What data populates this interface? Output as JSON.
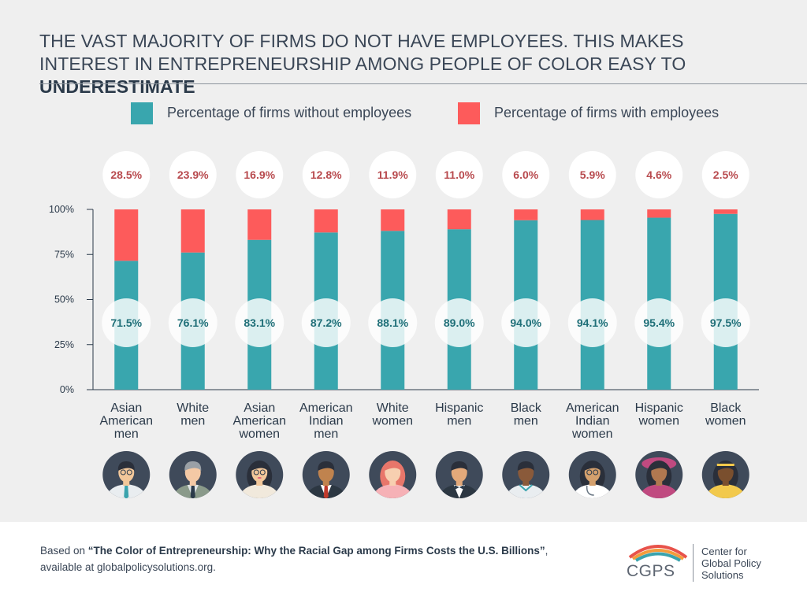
{
  "header": {
    "title_main": "THE VAST MAJORITY OF FIRMS DO NOT HAVE EMPLOYEES. THIS MAKES INTEREST IN ENTREPRENEURSHIP AMONG PEOPLE OF COLOR EASY TO ",
    "title_emphasis": "UNDERESTIMATE"
  },
  "colors": {
    "without": "#39a6ae",
    "with": "#fd5b5b",
    "with_text": "#b84a4e",
    "without_text": "#1f6f78",
    "axis": "#2b3a4a"
  },
  "chart_data": {
    "type": "bar",
    "stacked": true,
    "categories": [
      [
        "Asian",
        "American",
        "men"
      ],
      [
        "White",
        "men"
      ],
      [
        "Asian",
        "American",
        "women"
      ],
      [
        "American",
        "Indian",
        "men"
      ],
      [
        "White",
        "women"
      ],
      [
        "Hispanic",
        "men"
      ],
      [
        "Black",
        "men"
      ],
      [
        "American",
        "Indian",
        "women"
      ],
      [
        "Hispanic",
        "women"
      ],
      [
        "Black",
        "women"
      ]
    ],
    "series": [
      {
        "name": "Percentage of firms without employees",
        "color": "#39a6ae",
        "values": [
          71.5,
          76.1,
          83.1,
          87.2,
          88.1,
          89.0,
          94.0,
          94.1,
          95.4,
          97.5
        ],
        "labels": [
          "71.5%",
          "76.1%",
          "83.1%",
          "87.2%",
          "88.1%",
          "89.0%",
          "94.0%",
          "94.1%",
          "95.4%",
          "97.5%"
        ]
      },
      {
        "name": "Percentage of firms with employees",
        "color": "#fd5b5b",
        "values": [
          28.5,
          23.9,
          16.9,
          12.8,
          11.9,
          11.0,
          6.0,
          5.9,
          4.6,
          2.5
        ],
        "labels": [
          "28.5%",
          "23.9%",
          "16.9%",
          "12.8%",
          "11.9%",
          "11.0%",
          "6.0%",
          "5.9%",
          "4.6%",
          "2.5%"
        ]
      }
    ],
    "ylim": [
      0,
      100
    ],
    "yticks": [
      0,
      25,
      50,
      75,
      100
    ],
    "ytick_labels": [
      "0%",
      "25%",
      "50%",
      "75%",
      "100%"
    ],
    "legend_position": "top"
  },
  "avatars": [
    {
      "icon": "asian-man-avatar-icon",
      "skin": "#f2c79a",
      "hair": "#2a2f3a",
      "shirt": "#e9edf0",
      "tie": "#3aa3ad",
      "glasses": true
    },
    {
      "icon": "white-man-avatar-icon",
      "skin": "#f4c9a5",
      "hair": "#9aa0a6",
      "shirt": "#dfe4e6",
      "jacket": "#8a9a8a",
      "tie": "#2b3a4a"
    },
    {
      "icon": "asian-woman-avatar-icon",
      "skin": "#f2c79a",
      "hair": "#2a2f3a",
      "shirt": "#f1e9dc",
      "glasses": true,
      "lips": "#e0607a"
    },
    {
      "icon": "american-indian-man-avatar-icon",
      "skin": "#c0834e",
      "hair": "#2a2f3a",
      "shirt": "#ffffff",
      "jacket": "#2c3742",
      "tie": "#c0392b"
    },
    {
      "icon": "white-woman-avatar-icon",
      "skin": "#f7cfb0",
      "hair": "#e8766a",
      "shirt": "#f6b1b6"
    },
    {
      "icon": "hispanic-man-avatar-icon",
      "skin": "#e3a97a",
      "hair": "#2a2f3a",
      "shirt": "#ffffff",
      "jacket": "#2c3742",
      "bowtie": "#2b3a4a"
    },
    {
      "icon": "black-man-avatar-icon",
      "skin": "#8a5a3a",
      "hair": "#2a2f3a",
      "shirt": "#e9edf0",
      "collar": "#3aa3ad"
    },
    {
      "icon": "american-indian-woman-avatar-icon",
      "skin": "#d4a06d",
      "hair": "#2a2f3a",
      "shirt": "#ffffff",
      "glasses": true,
      "stethoscope": true
    },
    {
      "icon": "hispanic-woman-avatar-icon",
      "skin": "#b07850",
      "hair": "#2a2f3a",
      "hat": "#c04a80",
      "shirt": "#c04a80"
    },
    {
      "icon": "black-woman-avatar-icon",
      "skin": "#7a4f2e",
      "hair": "#2a2f3a",
      "band": "#f2c94c",
      "shirt": "#f2c94c"
    }
  ],
  "footer": {
    "prefix": "Based on ",
    "report_title": "“The Color of Entrepreneurship: Why the Racial Gap among Firms Costs the U.S. Billions”",
    "line2": "available at globalpolicysolutions.org.",
    "logo_text": "CGPS",
    "org_lines": [
      "Center for",
      "Global Policy",
      "Solutions"
    ]
  }
}
